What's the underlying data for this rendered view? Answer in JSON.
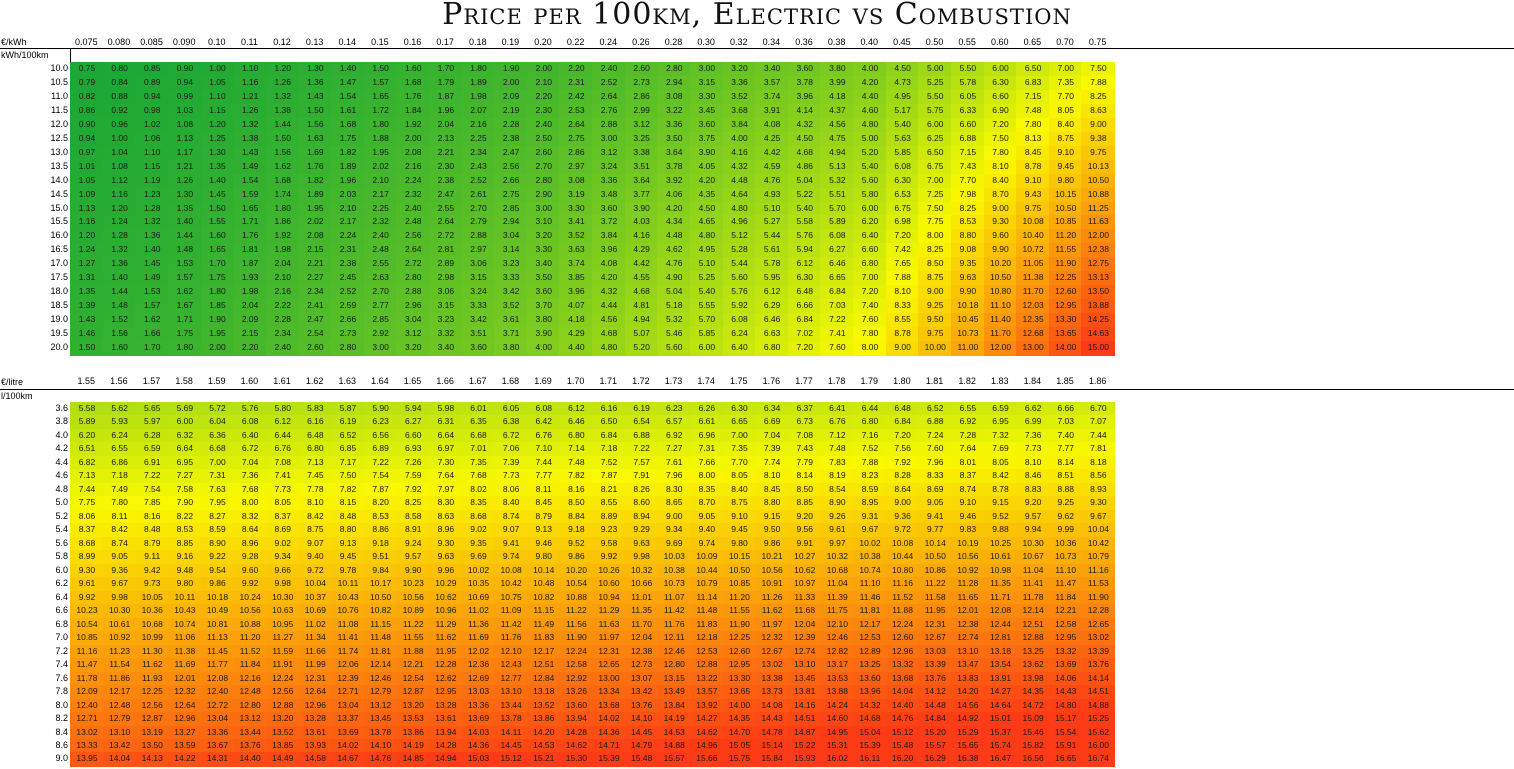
{
  "title": "Price per 100km, Electric vs Combustion",
  "chart_data": {
    "type": "table",
    "tables": [
      {
        "name": "electric",
        "corner_top": "€/kWh",
        "corner_bottom": "kWh/100km",
        "cols": [
          "0.075",
          "0.080",
          "0.085",
          "0.090",
          "0.10",
          "0.11",
          "0.12",
          "0.13",
          "0.14",
          "0.15",
          "0.16",
          "0.17",
          "0.18",
          "0.19",
          "0.20",
          "0.22",
          "0.24",
          "0.26",
          "0.28",
          "0.30",
          "0.32",
          "0.34",
          "0.36",
          "0.38",
          "0.40",
          "0.45",
          "0.50",
          "0.55",
          "0.60",
          "0.65",
          "0.70",
          "0.75"
        ],
        "rows": [
          "10.0",
          "10.5",
          "11.0",
          "11.5",
          "12.0",
          "12.5",
          "13.0",
          "13.5",
          "14.0",
          "14.5",
          "15.0",
          "15.5",
          "16.0",
          "16.5",
          "17.0",
          "17.5",
          "18.0",
          "18.5",
          "19.0",
          "19.5",
          "20.0"
        ],
        "color_scale": {
          "low": 0.75,
          "high": 15.0,
          "colors": [
            "#1aa836",
            "#f9f900",
            "#fd3b16"
          ]
        }
      },
      {
        "name": "combustion",
        "corner_top": "€/litre",
        "corner_bottom": "l/100km",
        "cols": [
          "1.55",
          "1.56",
          "1.57",
          "1.58",
          "1.59",
          "1.60",
          "1.61",
          "1.62",
          "1.63",
          "1.64",
          "1.65",
          "1.66",
          "1.67",
          "1.68",
          "1.69",
          "1.70",
          "1.71",
          "1.72",
          "1.73",
          "1.74",
          "1.75",
          "1.76",
          "1.77",
          "1.78",
          "1.79",
          "1.80",
          "1.81",
          "1.82",
          "1.83",
          "1.84",
          "1.85",
          "1.86"
        ],
        "rows": [
          "3.6",
          "3.8",
          "4.0",
          "4.2",
          "4.4",
          "4.6",
          "4.8",
          "5.0",
          "5.2",
          "5.4",
          "5.6",
          "5.8",
          "6.0",
          "6.2",
          "6.4",
          "6.6",
          "6.8",
          "7.0",
          "7.2",
          "7.4",
          "7.6",
          "7.8",
          "8.0",
          "8.2",
          "8.4",
          "8.6",
          "9.0"
        ],
        "color_scale": {
          "low": 0.75,
          "high": 15.0,
          "colors": [
            "#1aa836",
            "#f9f900",
            "#fd3b16"
          ]
        }
      }
    ],
    "cell_value": "row × column"
  }
}
